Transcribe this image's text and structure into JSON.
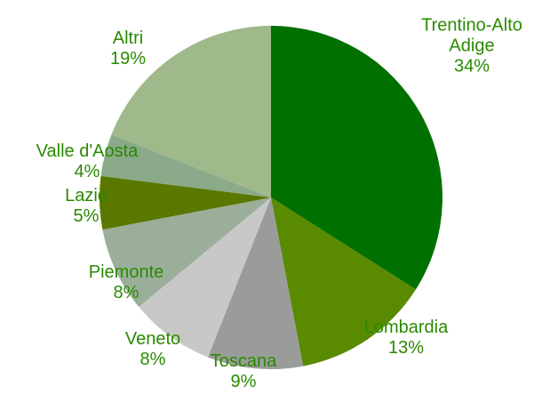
{
  "chart_data": {
    "type": "pie",
    "categories": [
      "Trentino-Alto Adige",
      "Lombardia",
      "Toscana",
      "Veneto",
      "Piemonte",
      "Lazio",
      "Valle d'Aosta",
      "Altri"
    ],
    "values": [
      34,
      13,
      9,
      8,
      8,
      5,
      4,
      19
    ],
    "value_labels": [
      "34%",
      "13%",
      "9%",
      "8%",
      "8%",
      "5%",
      "4%",
      "19%"
    ],
    "colors": [
      "#007000",
      "#5a8a00",
      "#9a9c9a",
      "#c8c8c8",
      "#9aae9a",
      "#5a7800",
      "#8aaa8a",
      "#9fb98a"
    ]
  }
}
